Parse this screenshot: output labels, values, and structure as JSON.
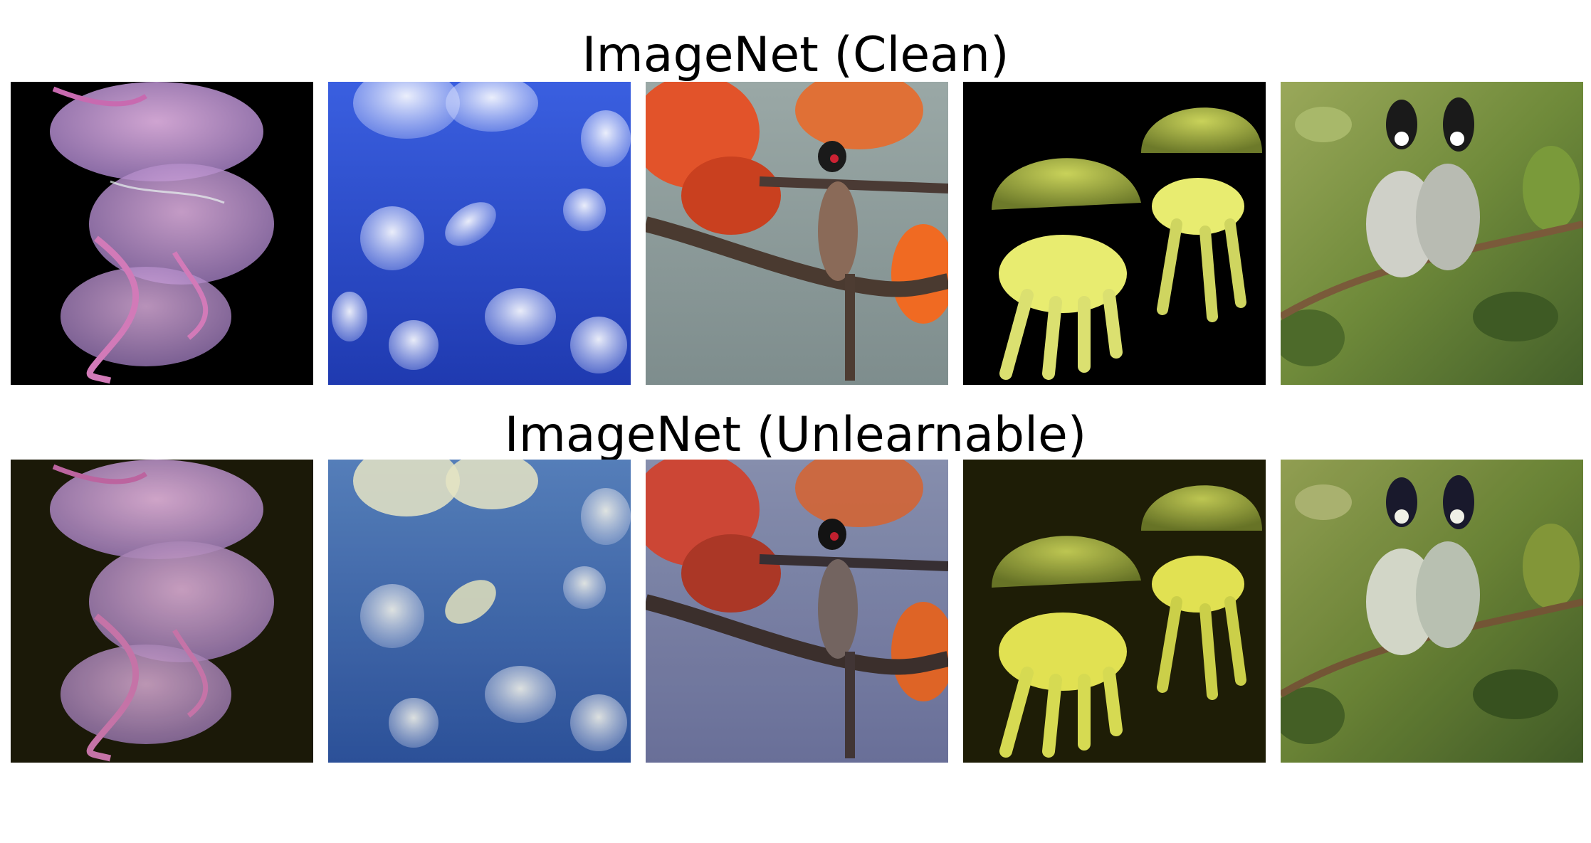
{
  "titles": {
    "clean": "ImageNet (Clean)",
    "unlearnable": "ImageNet (Unlearnable)"
  },
  "rows": [
    {
      "key": "clean",
      "tiles": [
        "jellyfish-pink",
        "moon-jellyfish",
        "bulbul-flowers",
        "yellow-jellyfish",
        "bulbul-pair"
      ]
    },
    {
      "key": "unlearnable",
      "tiles": [
        "jellyfish-pink",
        "moon-jellyfish",
        "bulbul-flowers",
        "yellow-jellyfish",
        "bulbul-pair"
      ]
    }
  ],
  "colors": {
    "clean_black_bg": "#000000",
    "unlearnable_dark_bg": "#1c1a08",
    "blue_water": "#2f4fc4",
    "unlearnable_blue": "#3f66b8"
  }
}
